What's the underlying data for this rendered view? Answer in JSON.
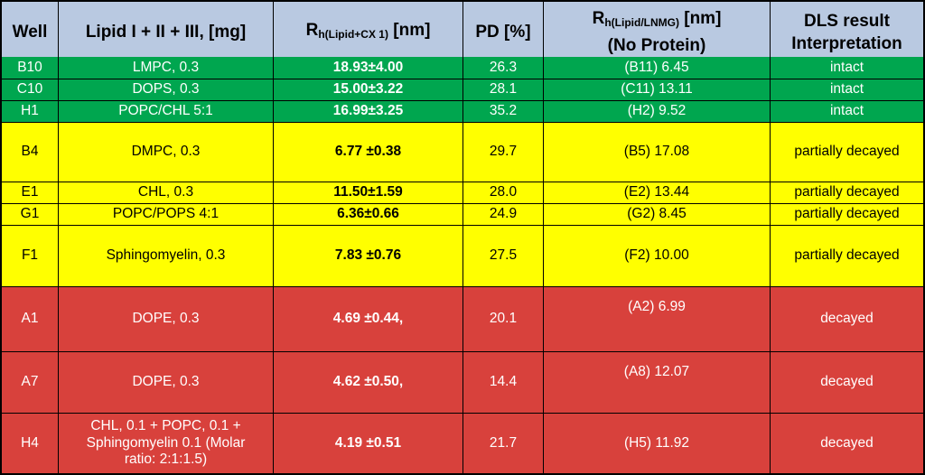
{
  "table": {
    "columns": [
      {
        "key": "well",
        "label": "Well"
      },
      {
        "key": "lipid",
        "label": "Lipid I + II + III, [mg]"
      },
      {
        "key": "rh",
        "label_prefix": "R",
        "label_sub": "h(Lipid+CX 1)",
        "label_suffix": " [nm]"
      },
      {
        "key": "pd",
        "label": "PD [%]"
      },
      {
        "key": "rh_np",
        "label_prefix": "R",
        "label_sub": "h(Lipid/LNMG)",
        "label_suffix": " [nm]",
        "label_line2": "(No Protein)"
      },
      {
        "key": "result",
        "label_line1": "DLS result",
        "label_line2": "Interpretation"
      }
    ],
    "rows": [
      {
        "well": "B10",
        "lipid": "LMPC, 0.3",
        "rh": "18.93±4.00",
        "pd": "26.3",
        "rh_np": "(B11) 6.45",
        "result": "intact",
        "color": "green"
      },
      {
        "well": "C10",
        "lipid": "DOPS, 0.3",
        "rh": "15.00±3.22",
        "pd": "28.1",
        "rh_np": "(C11) 13.11",
        "result": "intact",
        "color": "green"
      },
      {
        "well": "H1",
        "lipid": "POPC/CHL 5:1",
        "rh": "16.99±3.25",
        "pd": "35.2",
        "rh_np": "(H2) 9.52",
        "result": "intact",
        "color": "green"
      },
      {
        "well": "B4",
        "lipid": "DMPC, 0.3",
        "rh": "6.77 ±0.38",
        "pd": "29.7",
        "rh_np": "(B5) 17.08",
        "result": "partially decayed",
        "color": "yellow"
      },
      {
        "well": "E1",
        "lipid": "CHL, 0.3",
        "rh": "11.50±1.59",
        "pd": "28.0",
        "rh_np": "(E2) 13.44",
        "result": "partially decayed",
        "color": "yellow"
      },
      {
        "well": "G1",
        "lipid": "POPC/POPS 4:1",
        "rh": "6.36±0.66",
        "pd": "24.9",
        "rh_np": "(G2) 8.45",
        "result": "partially decayed",
        "color": "yellow"
      },
      {
        "well": "F1",
        "lipid": "Sphingomyelin, 0.3",
        "rh": "7.83 ±0.76",
        "pd": "27.5",
        "rh_np": "(F2) 10.00",
        "result": "partially decayed",
        "color": "yellow"
      },
      {
        "well": "A1",
        "lipid": "DOPE, 0.3",
        "rh": "4.69 ±0.44,",
        "pd": "20.1",
        "rh_np": "(A2) 6.99",
        "result": "decayed",
        "color": "red",
        "rh_np_high": true
      },
      {
        "well": "A7",
        "lipid": "DOPE, 0.3",
        "rh": "4.62 ±0.50,",
        "pd": "14.4",
        "rh_np": "(A8) 12.07",
        "result": "decayed",
        "color": "red",
        "rh_np_high": true
      },
      {
        "well": "H4",
        "lipid": "CHL, 0.1 + POPC, 0.1 + Sphingomyelin 0.1 (Molar ratio: 2:1:1.5)",
        "rh": "4.19 ±0.51",
        "pd": "21.7",
        "rh_np": "(H5) 11.92",
        "result": "decayed",
        "color": "red"
      }
    ]
  },
  "colors": {
    "header_bg": "#b9c9e1",
    "green": "#00a64f",
    "yellow": "#ffff00",
    "red": "#d8413c",
    "border": "#000000"
  }
}
